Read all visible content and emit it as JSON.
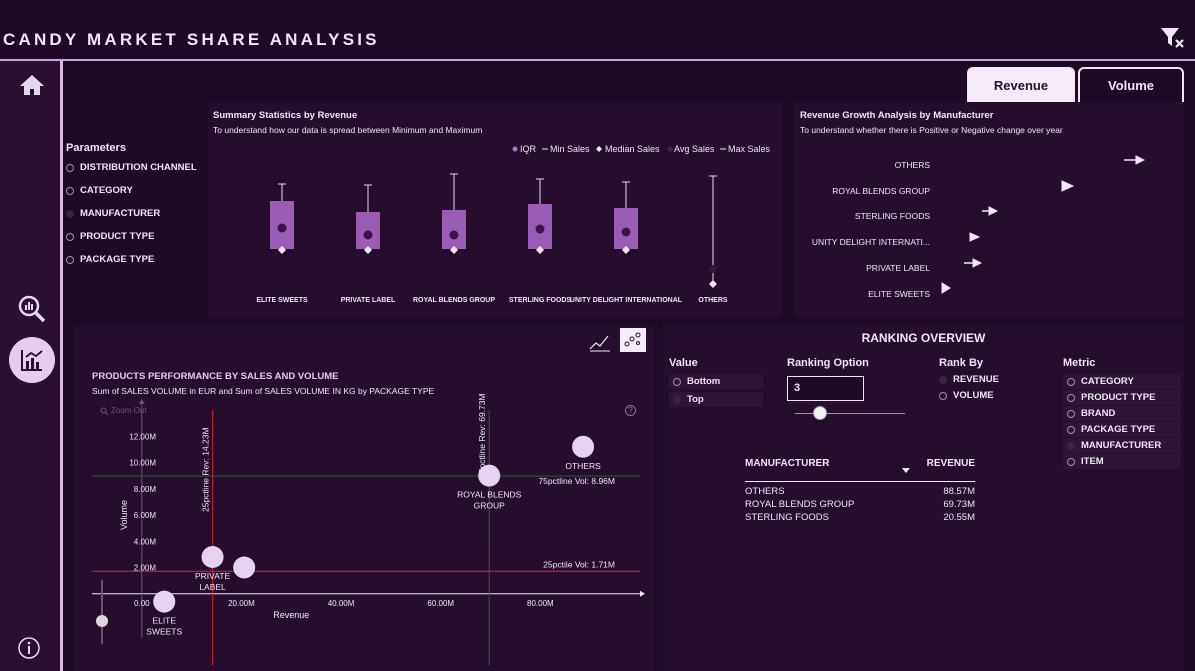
{
  "app": {
    "title": "CANDY MARKET SHARE ANALYSIS"
  },
  "tabs": [
    {
      "label": "Revenue",
      "active": true
    },
    {
      "label": "Volume",
      "active": false
    }
  ],
  "sidebar": {
    "items": [
      "home-icon",
      "search-analytics-icon",
      "chart-analytics-icon",
      "info-icon"
    ]
  },
  "parameters": {
    "title": "Parameters",
    "items": [
      "DISTRIBUTION CHANNEL",
      "CATEGORY",
      "MANUFACTURER",
      "PRODUCT TYPE",
      "PACKAGE TYPE"
    ]
  },
  "summary": {
    "title": "Summary Statistics by Revenue",
    "subtitle": "To understand how our data is spread between Minimum and Maximum",
    "legend": [
      "IQR",
      "Min Sales",
      "Median Sales",
      "Avg Sales",
      "Max Sales"
    ],
    "categories": [
      "ELITE SWEETS",
      "PRIVATE LABEL",
      "ROYAL BLENDS GROUP",
      "STERLING FOODS",
      "UNITY DELIGHT INTERNATIONAL",
      "OTHERS"
    ]
  },
  "growth": {
    "title": "Revenue Growth Analysis by Manufacturer",
    "subtitle": "To understand whether there is Positive or Negative change over year",
    "rows": [
      "OTHERS",
      "ROYAL BLENDS GROUP",
      "STERLING FOODS",
      "UNITY DELIGHT INTERNATI...",
      "PRIVATE LABEL",
      "ELITE SWEETS"
    ]
  },
  "scatter": {
    "title": "PRODUCTS PERFORMANCE BY SALES AND VOLUME",
    "subtitle": "Sum of SALES VOLUME  in EUR and Sum of SALES VOLUME IN KG by PACKAGE TYPE",
    "zoom": "Zoom Out",
    "help": "?",
    "xlabel": "Revenue",
    "ylabel": "Volume",
    "ref_lines": {
      "vline_25": "25pctline Rev: 14.23M",
      "vline_75": "75pctline Rev: 69.73M",
      "hline_75": "75pctline Vol: 8.96M",
      "hline_25": "25pctile Vol: 1.71M"
    },
    "point_labels": [
      "OTHERS",
      "ROYAL BLENDS GROUP",
      "PRIVATE LABEL",
      "ELITE SWEETS"
    ]
  },
  "chart_data": {
    "type": "scatter",
    "title": "PRODUCTS PERFORMANCE BY SALES AND VOLUME",
    "xlabel": "Revenue",
    "ylabel": "Volume",
    "xlim": [
      -10,
      100
    ],
    "ylim": [
      -2,
      14
    ],
    "x_ticks": [
      "0.00",
      "20.00M",
      "40.00M",
      "60.00M",
      "80.00M"
    ],
    "y_ticks": [
      "2.00M",
      "4.00M",
      "6.00M",
      "8.00M",
      "10.00M",
      "12.00M"
    ],
    "points": [
      {
        "label": "OTHERS",
        "x": 88.57,
        "y": 11.2
      },
      {
        "label": "ROYAL BLENDS GROUP",
        "x": 69.73,
        "y": 9.0
      },
      {
        "label": "PRIVATE LABEL",
        "x": 14.2,
        "y": 2.8
      },
      {
        "label": "",
        "x": 20.55,
        "y": 2.0
      },
      {
        "label": "ELITE SWEETS",
        "x": 4.5,
        "y": -0.6
      }
    ]
  },
  "ranking": {
    "title": "RANKING OVERVIEW",
    "value_label": "Value",
    "value_options": [
      "Bottom",
      "Top"
    ],
    "option_label": "Ranking Option",
    "option_value": "3",
    "rankby_label": "Rank By",
    "rankby_options": [
      "REVENUE",
      "VOLUME"
    ],
    "metric_label": "Metric",
    "metric_options": [
      "CATEGORY",
      "PRODUCT TYPE",
      "BRAND",
      "PACKAGE TYPE",
      "MANUFACTURER",
      "ITEM"
    ],
    "table_headers": [
      "MANUFACTURER",
      "REVENUE"
    ],
    "rows": [
      {
        "name": "OTHERS",
        "value": "88.57M"
      },
      {
        "name": "ROYAL BLENDS GROUP",
        "value": "69.73M"
      },
      {
        "name": "STERLING FOODS",
        "value": "20.55M"
      }
    ]
  }
}
